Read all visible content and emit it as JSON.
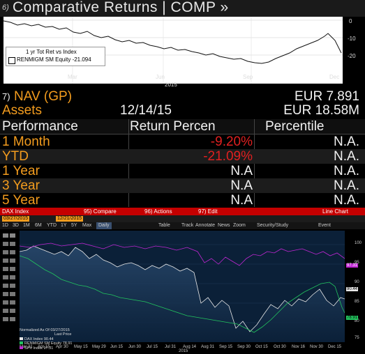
{
  "top": {
    "title_num": "6)",
    "title": "Comparative Returns | COMP »",
    "chart": {
      "x_labels": [
        "Mar",
        "Jun",
        "Sep",
        "Dec"
      ],
      "year_label": "2015",
      "y_labels": [
        "0",
        "-10",
        "-20"
      ],
      "legend_title": "1 yr Tot Ret vs Index",
      "legend_series": "RENMIGM SM Equity  -21.094"
    },
    "nav": {
      "num": "7)",
      "label": "NAV (GP)",
      "value": "EUR 7.891"
    },
    "assets": {
      "label": "Assets",
      "date": "12/14/15",
      "value": "EUR 18.58M"
    },
    "table": {
      "headers": [
        "Performance",
        "Return Percen",
        "Percentile"
      ],
      "rows": [
        {
          "period": "1 Month",
          "ret": "-9.20%",
          "pct": "N.A."
        },
        {
          "period": "YTD",
          "ret": "-21.09%",
          "pct": "N.A."
        },
        {
          "period": "1 Year",
          "ret": "N.A",
          "pct": "N.A."
        },
        {
          "period": "3 Year",
          "ret": "N.A",
          "pct": "N.A."
        },
        {
          "period": "5 Year",
          "ret": "N.A",
          "pct": "N.A."
        }
      ]
    }
  },
  "bottom": {
    "index_label": "DAX Index",
    "menu": [
      "95) Compare",
      "96) Actions",
      "97) Edit"
    ],
    "chart_type": "Line Chart",
    "date_from": "03/27/2015",
    "date_to": "12/21/2015",
    "periods": [
      "1D",
      "3D",
      "1M",
      "6M",
      "YTD",
      "1Y",
      "5Y",
      "Max"
    ],
    "freq": "Daily",
    "tools": [
      "Table",
      "Track",
      "Annotate",
      "News",
      "Zoom",
      "Security/Study",
      "Event"
    ],
    "y_labels": [
      "100",
      "95",
      "90",
      "85",
      "80",
      "75"
    ],
    "x_labels": [
      "Mar 31",
      "Apr 15",
      "Apr 30",
      "May 15",
      "May 29",
      "Jun 15",
      "Jun 30",
      "Jul 15",
      "Jul 31",
      "Aug 14",
      "Aug 31",
      "Sep 15",
      "Sep 30",
      "Oct 15",
      "Oct 30",
      "Nov 16",
      "Nov 30",
      "Dec 15"
    ],
    "year_label": "2015",
    "legend": {
      "title": "Normalized As Of 03/27/2015",
      "subtitle": "Last Price",
      "items": [
        {
          "name": "DAX Index",
          "value": "90.44",
          "color": "#e8e8e8"
        },
        {
          "name": "RENMIGM SM Equity",
          "value": "78.91",
          "color": "#22c55e"
        },
        {
          "name": "SPX Index",
          "value": "97.31",
          "color": "#c026d3"
        }
      ]
    },
    "last_values": [
      "97.31",
      "90.44",
      "78.91"
    ]
  },
  "colors": {
    "orange": "#f39c1e",
    "red": "#e02020",
    "bar_red": "#c50000"
  }
}
